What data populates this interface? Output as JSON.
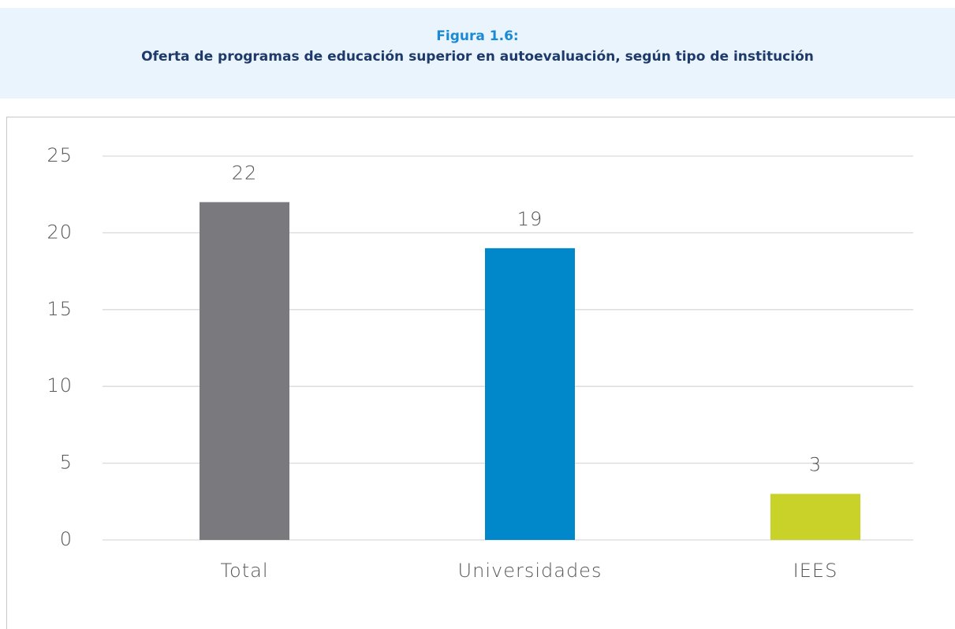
{
  "header": {
    "label": "Figura 1.6:",
    "title": "Oferta de programas de educación superior en autoevaluación, según tipo de institución"
  },
  "chart_data": {
    "type": "bar",
    "categories": [
      "Total",
      "Universidades",
      "IEES"
    ],
    "values": [
      22,
      19,
      3
    ],
    "colors": [
      "#7a797e",
      "#0088cb",
      "#c9d229"
    ],
    "ylim": [
      0,
      25
    ],
    "yticks": [
      0,
      5,
      10,
      15,
      20,
      25
    ],
    "grid": true,
    "data_labels": true
  }
}
